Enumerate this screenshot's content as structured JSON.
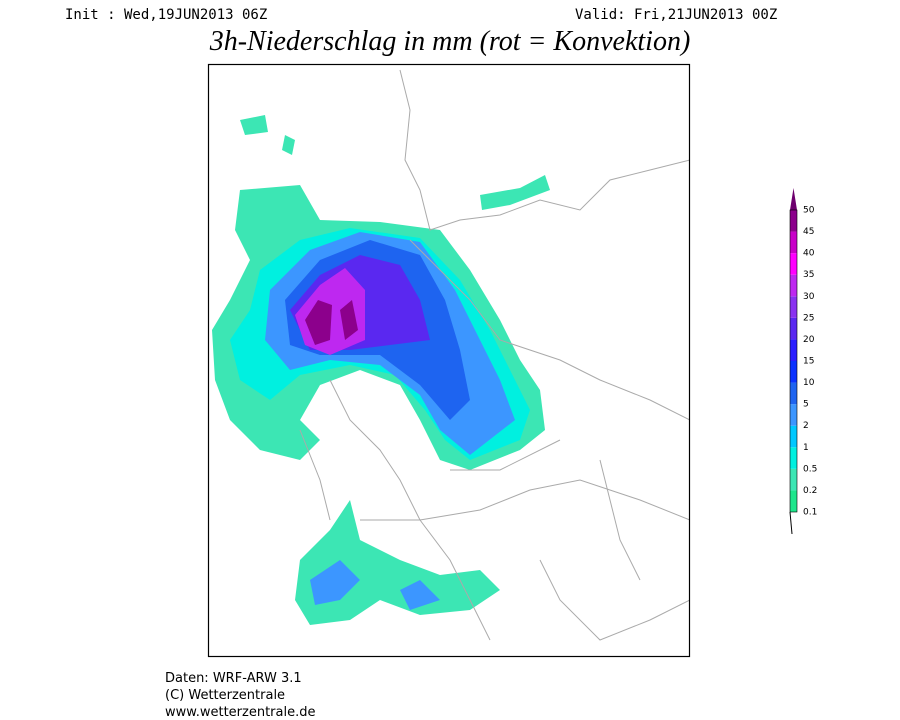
{
  "header": {
    "init": "Init : Wed,19JUN2013 06Z",
    "valid": "Valid: Fri,21JUN2013 00Z",
    "title": "3h-Niederschlag in mm (rot = Konvektion)"
  },
  "legend": {
    "ticks": [
      0.1,
      0.2,
      0.5,
      1,
      2,
      5,
      10,
      15,
      20,
      25,
      30,
      35,
      40,
      45,
      50
    ],
    "colors": [
      "#1ee68c",
      "#3ce6b4",
      "#00f0e0",
      "#00c8ff",
      "#3c96ff",
      "#1e64f0",
      "#0a32ff",
      "#2a1eff",
      "#5a28f0",
      "#8a32f0",
      "#be28f0",
      "#ff00ff",
      "#c800c8",
      "#8c008c"
    ],
    "over_color": "#6e006e"
  },
  "footer": {
    "lines": [
      "Daten: WRF-ARW 3.1",
      "(C) Wetterzentrale",
      "www.wetterzentrale.de"
    ]
  }
}
